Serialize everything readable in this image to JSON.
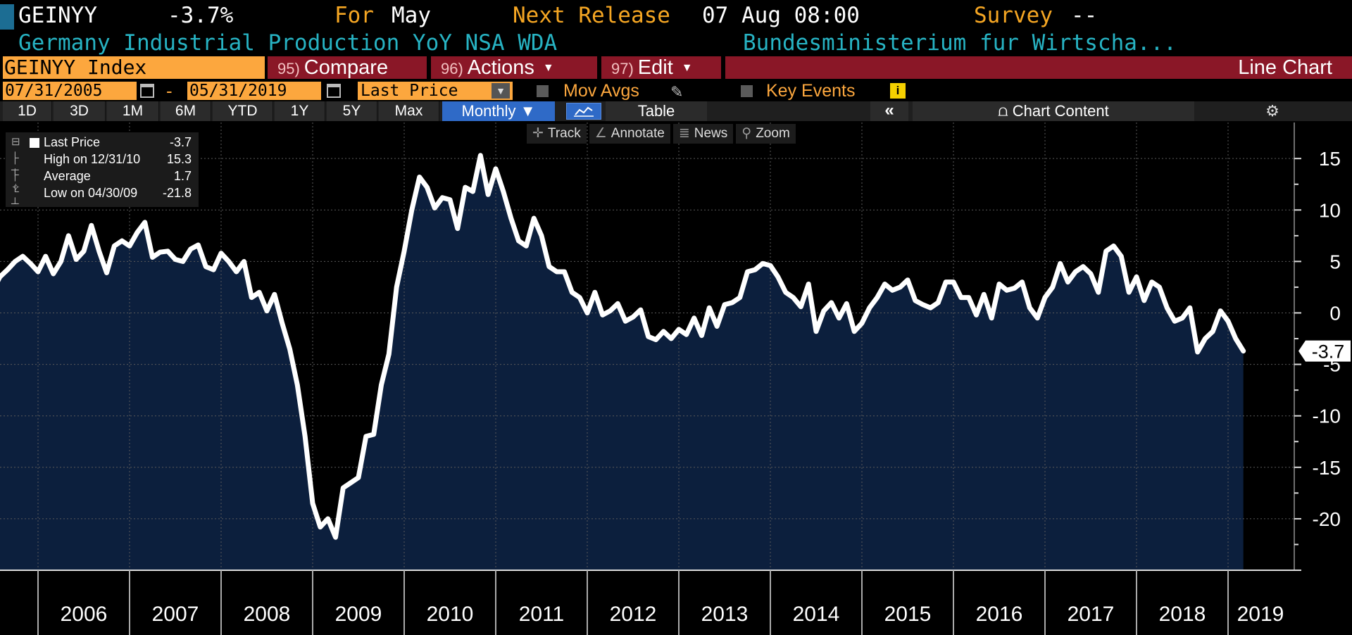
{
  "header": {
    "ticker": "GEINYY",
    "last_value": "-3.7%",
    "for_label": "For",
    "for_value": "May",
    "next_release_label": "Next Release",
    "next_release_value": "07 Aug 08:00",
    "survey_label": "Survey",
    "survey_value": "--",
    "description": "Germany Industrial Production YoY NSA WDA",
    "source": "Bundesministerium fur Wirtscha..."
  },
  "command_bar": {
    "security": "GEINYY Index",
    "compare": {
      "num": "95)",
      "label": "Compare"
    },
    "actions": {
      "num": "96)",
      "label": "Actions"
    },
    "edit": {
      "num": "97)",
      "label": "Edit"
    },
    "chart_type": "Line Chart"
  },
  "settings": {
    "start_date": "07/31/2005",
    "end_date": "05/31/2019",
    "field": "Last Price",
    "mov_avgs": "Mov Avgs",
    "key_events": "Key Events",
    "info_glyph": "i"
  },
  "toolbar": {
    "periods": [
      "1D",
      "3D",
      "1M",
      "6M",
      "YTD",
      "1Y",
      "5Y",
      "Max"
    ],
    "frequency": "Monthly",
    "table": "Table",
    "collapse": "«",
    "chart_content": "Chart Content"
  },
  "chart_tools": {
    "track": "Track",
    "annotate": "Annotate",
    "news": "News",
    "zoom": "Zoom"
  },
  "legend": {
    "last_price_label": "Last Price",
    "last_price_value": "-3.7",
    "high_label": "High on 12/31/10",
    "high_value": "15.3",
    "average_label": "Average",
    "average_value": "1.7",
    "low_label": "Low on 04/30/09",
    "low_value": "-21.8"
  },
  "colors": {
    "accent_orange": "#fca73e",
    "title_orange": "#f5a623",
    "cyan": "#27b3c3",
    "menu_red": "#8a1727",
    "selected_blue": "#2f6ac7",
    "area_fill": "#0c1f3d",
    "line": "#ffffff"
  },
  "icons": {
    "calendar": "calendar-icon",
    "pencil": "pencil-icon",
    "info": "info-icon",
    "gear": "gear-icon",
    "chart": "chart-icon"
  },
  "chart_data": {
    "type": "area",
    "x_labels": [
      "2006",
      "2007",
      "2008",
      "2009",
      "2010",
      "2011",
      "2012",
      "2013",
      "2014",
      "2015",
      "2016",
      "2017",
      "2018",
      "2019"
    ],
    "y_ticks": [
      15,
      10,
      5,
      0,
      -5,
      -10,
      -15,
      -20
    ],
    "ylim": [
      -25,
      18.5
    ],
    "last_label": "-3.7",
    "start": "2005-07",
    "series": [
      {
        "values": [
          2.0,
          3.5,
          4.2,
          5.0,
          5.5,
          4.8,
          4.0,
          5.5,
          3.8,
          5.0,
          7.5,
          5.2,
          6.0,
          8.5,
          6.0,
          3.9,
          6.5,
          7.0,
          6.5,
          7.8,
          8.8,
          5.4,
          5.9,
          6.0,
          5.2,
          5.0,
          6.2,
          6.6,
          4.5,
          4.2,
          5.8,
          5.0,
          4.0,
          5.0,
          1.5,
          2.0,
          0.2,
          1.8,
          -1.0,
          -3.5,
          -7.0,
          -12.0,
          -18.5,
          -20.8,
          -20.0,
          -21.8,
          -17.0,
          -16.5,
          -16.0,
          -12.0,
          -11.8,
          -7.0,
          -4.0,
          2.5,
          6.0,
          10.0,
          13.2,
          12.2,
          10.2,
          11.2,
          11.0,
          8.2,
          12.2,
          11.8,
          15.3,
          11.5,
          14.0,
          11.8,
          9.2,
          7.0,
          6.5,
          9.2,
          7.5,
          4.5,
          4.0,
          4.0,
          2.0,
          1.5,
          0.0,
          2.0,
          -0.2,
          0.2,
          0.9,
          -0.8,
          -0.4,
          0.3,
          -2.3,
          -2.6,
          -1.8,
          -2.5,
          -1.6,
          -2.1,
          -0.5,
          -2.2,
          0.5,
          -1.3,
          0.8,
          1.0,
          1.5,
          4.0,
          4.2,
          4.8,
          4.6,
          3.5,
          2.0,
          1.5,
          0.6,
          2.8,
          -1.8,
          0.2,
          1.0,
          -0.5,
          0.9,
          -1.8,
          -1.0,
          0.5,
          1.5,
          2.8,
          2.2,
          2.5,
          3.2,
          1.2,
          0.8,
          0.5,
          1.0,
          3.0,
          3.0,
          1.5,
          1.5,
          -0.2,
          1.8,
          -0.5,
          2.8,
          2.2,
          2.4,
          3.0,
          0.5,
          -0.5,
          1.5,
          2.5,
          4.8,
          3.0,
          4.0,
          4.5,
          3.8,
          2.0,
          6.0,
          6.5,
          5.5,
          2.0,
          3.5,
          1.2,
          3.0,
          2.5,
          0.5,
          -0.8,
          -0.5,
          0.5,
          -3.8,
          -2.5,
          -1.8,
          0.2,
          -0.8,
          -2.5,
          -3.7
        ]
      }
    ]
  }
}
